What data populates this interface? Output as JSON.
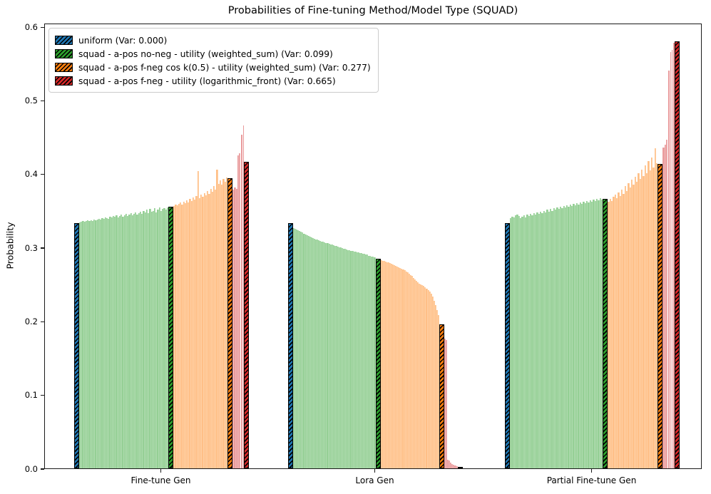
{
  "chart_data": {
    "type": "bar",
    "title": "Probabilities of Fine-tuning Method/Model Type (SQUAD)",
    "ylabel": "Probability",
    "xlabel": "",
    "ylim": [
      0.0,
      0.605
    ],
    "yticklabels": [
      "0.0",
      "0.1",
      "0.2",
      "0.3",
      "0.4",
      "0.5",
      "0.6"
    ],
    "yticks": [
      0.0,
      0.1,
      0.2,
      0.3,
      0.4,
      0.5,
      0.6
    ],
    "grid": false,
    "legend_position": "upper left",
    "legend_entries": [
      {
        "label": "uniform (Var: 0.000)",
        "color": "#1f77b4",
        "hatch": "//"
      },
      {
        "label": "squad - a-pos no-neg - utility (weighted_sum) (Var: 0.099)",
        "color": "#2ca02c",
        "hatch": "//"
      },
      {
        "label": "squad - a-pos f-neg cos k(0.5) - utility (weighted_sum) (Var: 0.277)",
        "color": "#ff7f0e",
        "hatch": "//"
      },
      {
        "label": "squad - a-pos f-neg - utility (logarithmic_front) (Var: 0.665)",
        "color": "#d62728",
        "hatch": "//"
      }
    ],
    "colors": {
      "uniform": "#1f77b4",
      "no_neg": "#2ca02c",
      "no_neg_light": "#94cf94",
      "f_neg_cos": "#ff7f0e",
      "f_neg_cos_light": "#ffbf86",
      "f_neg_log": "#d62728",
      "f_neg_log_light": "#e99a9b"
    },
    "groups": [
      {
        "category": "Fine-tune Gen",
        "uniform_bar": 0.333,
        "no_neg_bars": [
          0.334,
          0.335,
          0.336,
          0.335,
          0.336,
          0.337,
          0.336,
          0.337,
          0.336,
          0.338,
          0.337,
          0.338,
          0.339,
          0.338,
          0.34,
          0.339,
          0.341,
          0.34,
          0.339,
          0.342,
          0.341,
          0.343,
          0.342,
          0.344,
          0.341,
          0.343,
          0.345,
          0.342,
          0.344,
          0.346,
          0.343,
          0.345,
          0.347,
          0.344,
          0.346,
          0.348,
          0.345,
          0.347,
          0.349,
          0.346,
          0.35,
          0.348,
          0.351,
          0.347,
          0.352,
          0.349,
          0.35,
          0.353,
          0.348,
          0.351,
          0.354,
          0.35,
          0.352,
          0.353,
          0.351,
          0.354
        ],
        "no_neg_marker": 0.355,
        "f_neg_cos_bars": [
          0.356,
          0.358,
          0.357,
          0.359,
          0.361,
          0.358,
          0.362,
          0.36,
          0.364,
          0.361,
          0.366,
          0.363,
          0.368,
          0.365,
          0.37,
          0.404,
          0.367,
          0.372,
          0.369,
          0.374,
          0.371,
          0.377,
          0.373,
          0.38,
          0.376,
          0.383,
          0.379,
          0.406,
          0.386,
          0.391,
          0.385,
          0.393,
          0.389,
          0.395
        ],
        "f_neg_cos_marker": 0.394,
        "f_neg_log_bars": [
          0.379,
          0.381,
          0.38,
          0.425,
          0.428,
          0.453,
          0.466
        ],
        "f_neg_log_marker": 0.416
      },
      {
        "category": "Lora Gen",
        "uniform_bar": 0.333,
        "no_neg_bars": [
          0.326,
          0.325,
          0.324,
          0.323,
          0.322,
          0.321,
          0.32,
          0.319,
          0.318,
          0.317,
          0.316,
          0.315,
          0.314,
          0.313,
          0.312,
          0.311,
          0.311,
          0.31,
          0.309,
          0.308,
          0.308,
          0.307,
          0.306,
          0.306,
          0.305,
          0.304,
          0.304,
          0.303,
          0.302,
          0.302,
          0.301,
          0.3,
          0.3,
          0.299,
          0.298,
          0.298,
          0.297,
          0.296,
          0.296,
          0.295,
          0.295,
          0.294,
          0.294,
          0.293,
          0.293,
          0.292,
          0.292,
          0.291,
          0.291,
          0.29,
          0.29,
          0.289,
          0.289,
          0.288,
          0.288,
          0.287
        ],
        "no_neg_marker": 0.285,
        "f_neg_cos_bars": [
          0.283,
          0.282,
          0.282,
          0.281,
          0.28,
          0.28,
          0.279,
          0.278,
          0.277,
          0.276,
          0.275,
          0.274,
          0.273,
          0.272,
          0.271,
          0.27,
          0.269,
          0.267,
          0.266,
          0.264,
          0.262,
          0.261,
          0.259,
          0.257,
          0.255,
          0.253,
          0.251,
          0.25,
          0.249,
          0.248,
          0.246,
          0.244,
          0.242,
          0.24,
          0.237,
          0.233,
          0.228,
          0.222,
          0.215,
          0.208
        ],
        "f_neg_cos_marker": 0.196,
        "f_neg_log_bars": [
          0.176,
          0.174,
          0.012,
          0.011,
          0.008,
          0.006,
          0.005,
          0.004,
          0.003
        ],
        "f_neg_log_marker": 0.002
      },
      {
        "category": "Partial Fine-tune Gen",
        "uniform_bar": 0.333,
        "no_neg_bars": [
          0.34,
          0.342,
          0.341,
          0.344,
          0.345,
          0.343,
          0.34,
          0.342,
          0.344,
          0.341,
          0.345,
          0.343,
          0.346,
          0.344,
          0.347,
          0.345,
          0.348,
          0.346,
          0.349,
          0.347,
          0.35,
          0.348,
          0.351,
          0.349,
          0.352,
          0.35,
          0.353,
          0.351,
          0.354,
          0.352,
          0.355,
          0.353,
          0.356,
          0.354,
          0.357,
          0.355,
          0.358,
          0.356,
          0.359,
          0.357,
          0.36,
          0.358,
          0.361,
          0.359,
          0.362,
          0.36,
          0.363,
          0.361,
          0.364,
          0.362,
          0.365,
          0.363,
          0.366,
          0.364,
          0.367,
          0.365
        ],
        "no_neg_marker": 0.366,
        "f_neg_cos_bars": [
          0.362,
          0.366,
          0.363,
          0.369,
          0.372,
          0.367,
          0.375,
          0.37,
          0.379,
          0.373,
          0.383,
          0.377,
          0.387,
          0.381,
          0.392,
          0.385,
          0.396,
          0.389,
          0.401,
          0.393,
          0.406,
          0.397,
          0.411,
          0.401,
          0.417,
          0.405,
          0.422,
          0.409,
          0.435,
          0.414
        ],
        "f_neg_cos_marker": 0.413,
        "f_neg_log_bars": [
          0.436,
          0.44,
          0.446,
          0.54,
          0.565,
          0.568,
          0.578
        ],
        "f_neg_log_marker": 0.58
      }
    ]
  }
}
